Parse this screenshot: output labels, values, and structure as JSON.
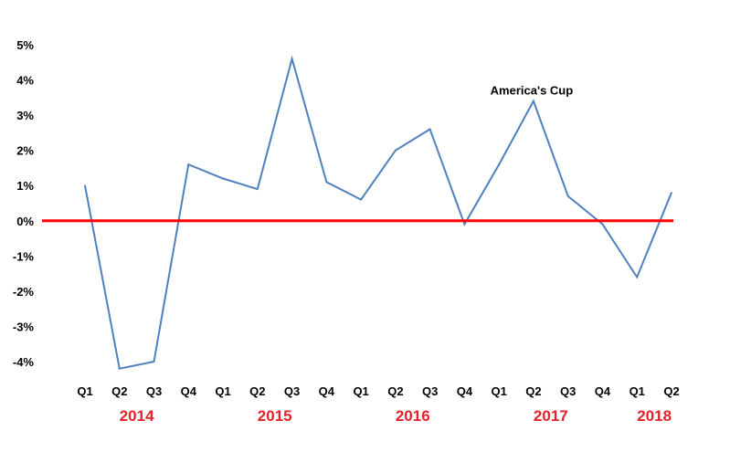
{
  "chart_data": {
    "type": "line",
    "title": "",
    "xlabel": "",
    "ylabel": "",
    "ylim": [
      -4,
      5
    ],
    "yticks": [
      "5%",
      "4%",
      "3%",
      "2%",
      "1%",
      "0%",
      "-1%",
      "-2%",
      "-3%",
      "-4%"
    ],
    "ytick_values": [
      5,
      4,
      3,
      2,
      1,
      0,
      -1,
      -2,
      -3,
      -4
    ],
    "categories": [
      "Q1",
      "Q2",
      "Q3",
      "Q4",
      "Q1",
      "Q2",
      "Q3",
      "Q4",
      "Q1",
      "Q2",
      "Q3",
      "Q4",
      "Q1",
      "Q2",
      "Q3",
      "Q4",
      "Q1",
      "Q2"
    ],
    "year_labels": [
      {
        "label": "2014",
        "from": 0,
        "to": 3
      },
      {
        "label": "2015",
        "from": 4,
        "to": 7
      },
      {
        "label": "2016",
        "from": 8,
        "to": 11
      },
      {
        "label": "2017",
        "from": 12,
        "to": 15
      },
      {
        "label": "2018",
        "from": 16,
        "to": 17
      }
    ],
    "series": [
      {
        "values": [
          1.0,
          -4.2,
          -4.0,
          1.6,
          1.2,
          0.9,
          4.6,
          1.1,
          0.6,
          2.0,
          2.6,
          -0.1,
          1.6,
          3.4,
          0.7,
          -0.1,
          -1.6,
          0.8
        ]
      }
    ],
    "reference_line": {
      "value": 0
    },
    "annotations": [
      {
        "text": "America's Cup",
        "index": 13
      }
    ],
    "grid": false,
    "colors": {
      "series": "#4f81bd",
      "reference": "#ff0000",
      "year_text": "#e8202a",
      "text": "#000000"
    }
  }
}
